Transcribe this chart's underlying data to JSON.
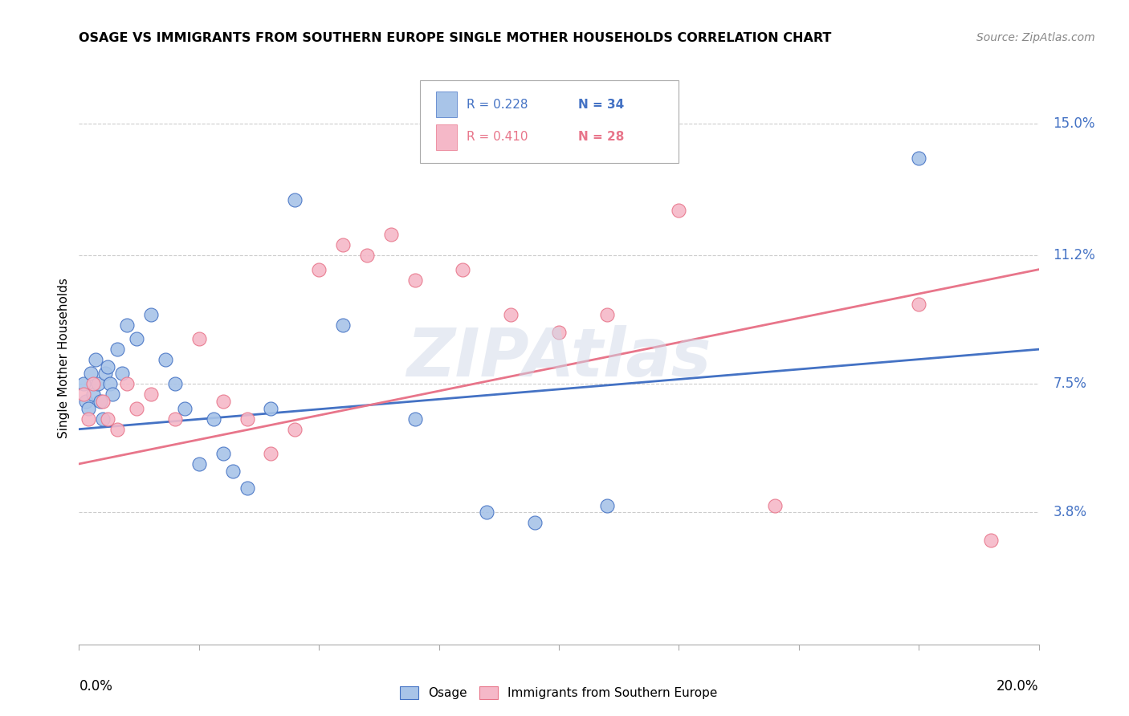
{
  "title": "OSAGE VS IMMIGRANTS FROM SOUTHERN EUROPE SINGLE MOTHER HOUSEHOLDS CORRELATION CHART",
  "source": "Source: ZipAtlas.com",
  "ylabel": "Single Mother Households",
  "ytick_values": [
    15.0,
    11.2,
    7.5,
    3.8
  ],
  "ytick_labels": [
    "15.0%",
    "11.2%",
    "7.5%",
    "3.8%"
  ],
  "xlim": [
    0.0,
    20.0
  ],
  "ylim": [
    0.0,
    16.5
  ],
  "legend_blue_r": "R = 0.228",
  "legend_blue_n": "N = 34",
  "legend_pink_r": "R = 0.410",
  "legend_pink_n": "N = 28",
  "blue_color": "#a8c4e8",
  "pink_color": "#f5b8c8",
  "blue_line_color": "#4472c4",
  "pink_line_color": "#e8758a",
  "blue_trend": [
    0.0,
    6.2,
    20.0,
    8.5
  ],
  "pink_trend": [
    0.0,
    5.2,
    20.0,
    10.8
  ],
  "blue_scatter": [
    [
      0.1,
      7.5
    ],
    [
      0.15,
      7.0
    ],
    [
      0.2,
      6.8
    ],
    [
      0.25,
      7.8
    ],
    [
      0.3,
      7.2
    ],
    [
      0.35,
      8.2
    ],
    [
      0.4,
      7.5
    ],
    [
      0.45,
      7.0
    ],
    [
      0.5,
      6.5
    ],
    [
      0.55,
      7.8
    ],
    [
      0.6,
      8.0
    ],
    [
      0.65,
      7.5
    ],
    [
      0.7,
      7.2
    ],
    [
      0.8,
      8.5
    ],
    [
      0.9,
      7.8
    ],
    [
      1.0,
      9.2
    ],
    [
      1.2,
      8.8
    ],
    [
      1.5,
      9.5
    ],
    [
      1.8,
      8.2
    ],
    [
      2.0,
      7.5
    ],
    [
      2.2,
      6.8
    ],
    [
      2.5,
      5.2
    ],
    [
      2.8,
      6.5
    ],
    [
      3.0,
      5.5
    ],
    [
      3.2,
      5.0
    ],
    [
      3.5,
      4.5
    ],
    [
      4.0,
      6.8
    ],
    [
      4.5,
      12.8
    ],
    [
      5.5,
      9.2
    ],
    [
      7.0,
      6.5
    ],
    [
      8.5,
      3.8
    ],
    [
      9.5,
      3.5
    ],
    [
      11.0,
      4.0
    ],
    [
      17.5,
      14.0
    ]
  ],
  "pink_scatter": [
    [
      0.1,
      7.2
    ],
    [
      0.2,
      6.5
    ],
    [
      0.3,
      7.5
    ],
    [
      0.5,
      7.0
    ],
    [
      0.6,
      6.5
    ],
    [
      0.8,
      6.2
    ],
    [
      1.0,
      7.5
    ],
    [
      1.2,
      6.8
    ],
    [
      1.5,
      7.2
    ],
    [
      2.0,
      6.5
    ],
    [
      2.5,
      8.8
    ],
    [
      3.0,
      7.0
    ],
    [
      3.5,
      6.5
    ],
    [
      4.0,
      5.5
    ],
    [
      4.5,
      6.2
    ],
    [
      5.0,
      10.8
    ],
    [
      5.5,
      11.5
    ],
    [
      6.0,
      11.2
    ],
    [
      6.5,
      11.8
    ],
    [
      7.0,
      10.5
    ],
    [
      8.0,
      10.8
    ],
    [
      9.0,
      9.5
    ],
    [
      10.0,
      9.0
    ],
    [
      11.0,
      9.5
    ],
    [
      12.5,
      12.5
    ],
    [
      14.5,
      4.0
    ],
    [
      17.5,
      9.8
    ],
    [
      19.0,
      3.0
    ]
  ],
  "watermark": "ZIPAtlas"
}
